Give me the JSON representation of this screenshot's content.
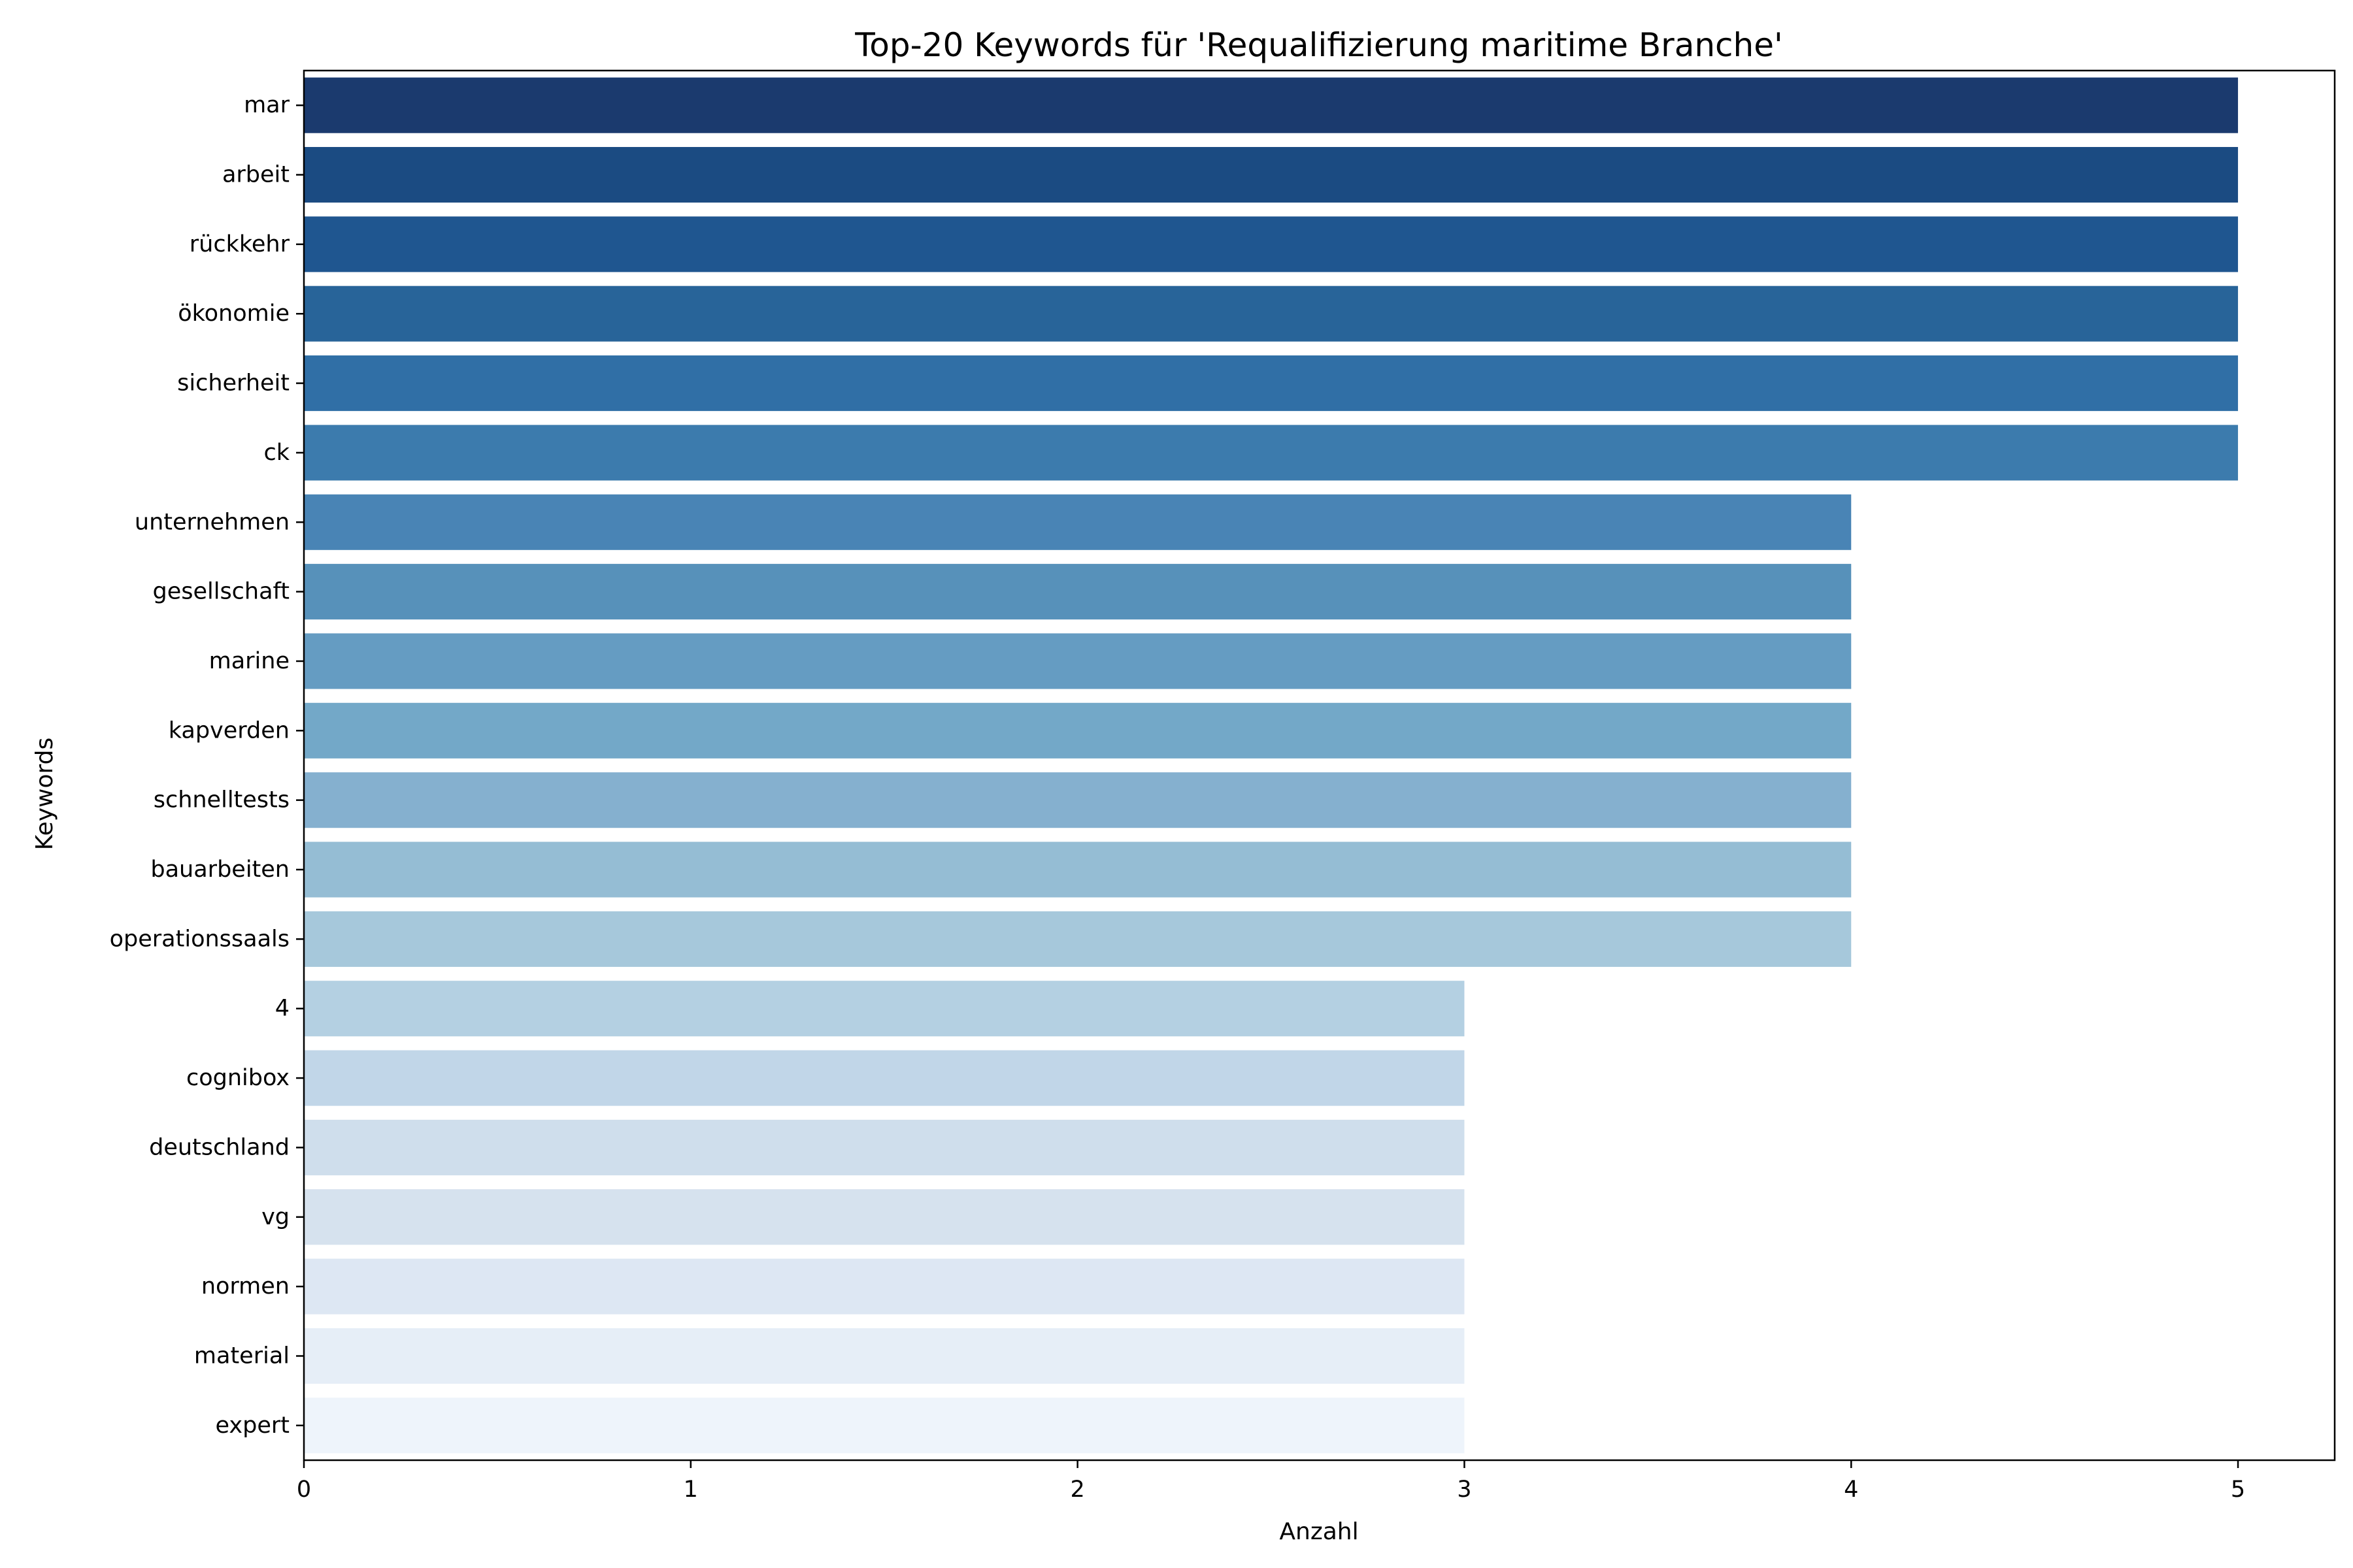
{
  "chart_data": {
    "type": "bar",
    "orientation": "horizontal",
    "title": "Top-20 Keywords für 'Requalifizierung maritime Branche'",
    "xlabel": "Anzahl",
    "ylabel": "Keywords",
    "xlim": [
      0,
      5.25
    ],
    "xticks": [
      0,
      1,
      2,
      3,
      4,
      5
    ],
    "grid": false,
    "legend": false,
    "categories": [
      "mar",
      "arbeit",
      "rückkehr",
      "ökonomie",
      "sicherheit",
      "ck",
      "unternehmen",
      "gesellschaft",
      "marine",
      "kapverden",
      "schnelltests",
      "bauarbeiten",
      "operationssaals",
      "4",
      "cognibox",
      "deutschland",
      "vg",
      "normen",
      "material",
      "expert"
    ],
    "values": [
      5,
      5,
      5,
      5,
      5,
      5,
      4,
      4,
      4,
      4,
      4,
      4,
      4,
      3,
      3,
      3,
      3,
      3,
      3,
      3
    ],
    "colors": [
      "#1b3a6e",
      "#1b4b82",
      "#1f5690",
      "#286499",
      "#306fa6",
      "#3c7bad",
      "#4984b5",
      "#5791ba",
      "#659cc2",
      "#73a8c8",
      "#85b0cf",
      "#95bdd4",
      "#a6c8db",
      "#b4d0e2",
      "#c1d6e8",
      "#cfdeec",
      "#d6e2ee",
      "#dde7f3",
      "#e6eef7",
      "#eef4fb"
    ]
  }
}
